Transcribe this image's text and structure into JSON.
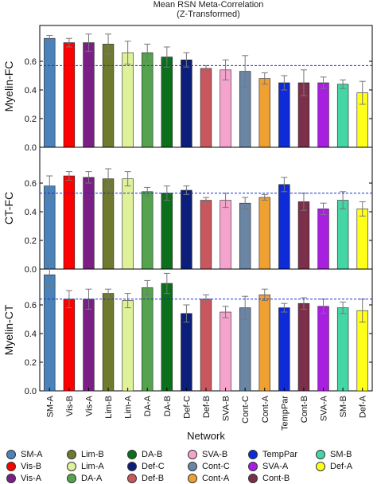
{
  "title": "Mean RSN Meta-Correlation",
  "subtitle": "(Z-Transformed)",
  "chart_data": {
    "type": "bar",
    "xlabel": "Network",
    "categories": [
      "SM-A",
      "Vis-B",
      "Vis-A",
      "Lim-B",
      "Lim-A",
      "DA-A",
      "DA-B",
      "Def-C",
      "Def-B",
      "SVA-B",
      "Cont-C",
      "Cont-A",
      "TempPar",
      "Cont-B",
      "SVA-A",
      "SM-B",
      "Def-A"
    ],
    "colors": [
      "#4a82b9",
      "#ff0000",
      "#7b1f86",
      "#6f7a2f",
      "#dff29a",
      "#55a34f",
      "#0b6f1c",
      "#0a1e7a",
      "#c8585e",
      "#f5a3cc",
      "#6a86a4",
      "#f0a030",
      "#0d2bd6",
      "#7b2f4a",
      "#a81fe0",
      "#44d6a4",
      "#ffff1a"
    ],
    "ylim": [
      0,
      0.85
    ],
    "yticks": [
      0.0,
      0.2,
      0.4,
      0.6
    ],
    "panels": [
      {
        "ylabel": "Myelin-FC",
        "mean_line": 0.57,
        "values": [
          0.76,
          0.73,
          0.73,
          0.72,
          0.66,
          0.66,
          0.63,
          0.61,
          0.55,
          0.54,
          0.53,
          0.48,
          0.45,
          0.45,
          0.45,
          0.44,
          0.38
        ],
        "errors": [
          0.02,
          0.03,
          0.06,
          0.07,
          0.08,
          0.06,
          0.07,
          0.05,
          0.02,
          0.07,
          0.11,
          0.04,
          0.05,
          0.09,
          0.04,
          0.03,
          0.08
        ]
      },
      {
        "ylabel": "CT-FC",
        "mean_line": 0.53,
        "values": [
          0.58,
          0.65,
          0.64,
          0.63,
          0.63,
          0.54,
          0.53,
          0.55,
          0.48,
          0.48,
          0.46,
          0.5,
          0.59,
          0.47,
          0.42,
          0.48,
          0.42
        ],
        "errors": [
          0.07,
          0.03,
          0.04,
          0.07,
          0.05,
          0.03,
          0.05,
          0.03,
          0.02,
          0.05,
          0.04,
          0.02,
          0.05,
          0.06,
          0.04,
          0.06,
          0.05
        ]
      },
      {
        "ylabel": "Myelin-CT",
        "mean_line": 0.64,
        "values": [
          0.81,
          0.64,
          0.64,
          0.68,
          0.63,
          0.72,
          0.75,
          0.54,
          0.64,
          0.55,
          0.58,
          0.67,
          0.58,
          0.61,
          0.59,
          0.58,
          0.56
        ],
        "errors": [
          0.08,
          0.06,
          0.07,
          0.03,
          0.05,
          0.05,
          0.07,
          0.06,
          0.03,
          0.04,
          0.08,
          0.04,
          0.03,
          0.04,
          0.05,
          0.04,
          0.08
        ]
      }
    ]
  },
  "legend": [
    {
      "label": "SM-A",
      "color": "#4a82b9"
    },
    {
      "label": "Lim-B",
      "color": "#6f7a2f"
    },
    {
      "label": "DA-B",
      "color": "#0b6f1c"
    },
    {
      "label": "SVA-B",
      "color": "#f5a3cc"
    },
    {
      "label": "TempPar",
      "color": "#0d2bd6"
    },
    {
      "label": "SM-B",
      "color": "#44d6a4"
    },
    {
      "label": "Vis-B",
      "color": "#ff0000"
    },
    {
      "label": "Lim-A",
      "color": "#dff29a"
    },
    {
      "label": "Def-C",
      "color": "#0a1e7a"
    },
    {
      "label": "Cont-C",
      "color": "#6a86a4"
    },
    {
      "label": "SVA-A",
      "color": "#a81fe0"
    },
    {
      "label": "Def-A",
      "color": "#ffff1a"
    },
    {
      "label": "Vis-A",
      "color": "#7b1f86"
    },
    {
      "label": "DA-A",
      "color": "#55a34f"
    },
    {
      "label": "Def-B",
      "color": "#c8585e"
    },
    {
      "label": "Cont-A",
      "color": "#f0a030"
    },
    {
      "label": "Cont-B",
      "color": "#7b2f4a"
    }
  ]
}
